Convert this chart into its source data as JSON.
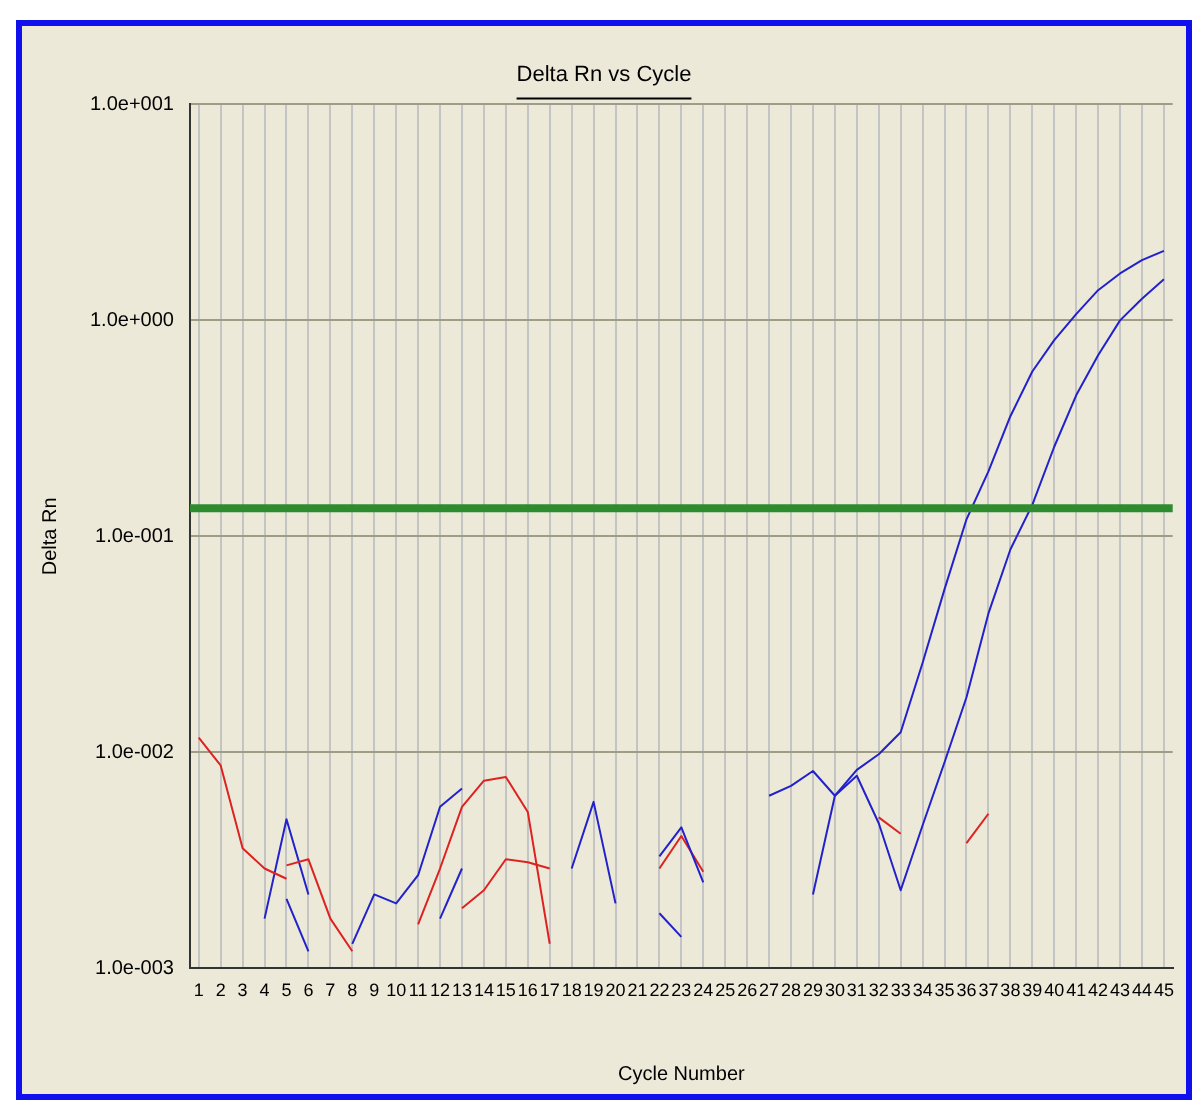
{
  "chart_data": {
    "type": "line",
    "title": "Delta Rn vs Cycle",
    "xlabel": "Cycle Number",
    "ylabel": "Delta Rn",
    "log": "y",
    "grid": true,
    "legend": false,
    "xlim": [
      0.6,
      45.4
    ],
    "xticks": [
      1,
      2,
      3,
      4,
      5,
      6,
      7,
      8,
      9,
      10,
      11,
      12,
      13,
      14,
      15,
      16,
      17,
      18,
      19,
      20,
      21,
      22,
      23,
      24,
      25,
      26,
      27,
      28,
      29,
      30,
      31,
      32,
      33,
      34,
      35,
      36,
      37,
      38,
      39,
      40,
      41,
      42,
      43,
      44,
      45
    ],
    "ylim": [
      0.001,
      10
    ],
    "yticks": [
      {
        "value": 0.001,
        "label": "1.0e-003"
      },
      {
        "value": 0.01,
        "label": "1.0e-002"
      },
      {
        "value": 0.1,
        "label": "1.0e-001"
      },
      {
        "value": 1,
        "label": "1.0e+000"
      },
      {
        "value": 10,
        "label": "1.0e+001"
      }
    ],
    "ref_lines": [
      {
        "axis": "y",
        "value": 0.135,
        "color": "#2e8b2e"
      }
    ],
    "series": [
      {
        "color": "#dd2222",
        "x": [
          1,
          2,
          3,
          4,
          5
        ],
        "values": [
          0.0117,
          0.0087,
          0.0036,
          0.0029,
          0.0026
        ]
      },
      {
        "color": "#dd2222",
        "x": [
          5,
          6,
          7,
          8
        ],
        "values": [
          0.003,
          0.0032,
          0.0017,
          0.0012
        ]
      },
      {
        "color": "#2222cc",
        "x": [
          4,
          5,
          6
        ],
        "values": [
          0.0017,
          0.0049,
          0.0022
        ]
      },
      {
        "color": "#2222cc",
        "x": [
          5,
          6
        ],
        "values": [
          0.0021,
          0.0012
        ]
      },
      {
        "color": "#2222cc",
        "x": [
          8,
          9,
          10,
          11,
          12,
          13
        ],
        "values": [
          0.0013,
          0.0022,
          0.002,
          0.0027,
          0.0056,
          0.0068
        ]
      },
      {
        "color": "#dd2222",
        "x": [
          11,
          12,
          13,
          14,
          15,
          16,
          17
        ],
        "values": [
          0.0016,
          0.0029,
          0.0056,
          0.0074,
          0.0077,
          0.0053,
          0.0013
        ]
      },
      {
        "color": "#2222cc",
        "x": [
          12,
          13
        ],
        "values": [
          0.0017,
          0.0029
        ]
      },
      {
        "color": "#dd2222",
        "x": [
          13,
          14,
          15,
          16,
          17
        ],
        "values": [
          0.0019,
          0.0023,
          0.0032,
          0.0031,
          0.0029
        ]
      },
      {
        "color": "#2222cc",
        "x": [
          18,
          19,
          20
        ],
        "values": [
          0.0029,
          0.0059,
          0.002
        ]
      },
      {
        "color": "#2222cc",
        "x": [
          22,
          23,
          24
        ],
        "values": [
          0.0033,
          0.0045,
          0.0025
        ]
      },
      {
        "color": "#dd2222",
        "x": [
          22,
          23,
          24
        ],
        "values": [
          0.0029,
          0.0041,
          0.0028
        ]
      },
      {
        "color": "#2222cc",
        "x": [
          22,
          23
        ],
        "values": [
          0.0018,
          0.0014
        ]
      },
      {
        "color": "#2222cc",
        "x": [
          27,
          28,
          29,
          30,
          31,
          32,
          33,
          34,
          35,
          36,
          37,
          38,
          39,
          40,
          41,
          42,
          43,
          44,
          45
        ],
        "values": [
          0.0063,
          0.007,
          0.0082,
          0.0063,
          0.0083,
          0.0098,
          0.0124,
          0.026,
          0.057,
          0.12,
          0.2,
          0.36,
          0.58,
          0.81,
          1.07,
          1.38,
          1.65,
          1.9,
          2.1
        ]
      },
      {
        "color": "#2222cc",
        "x": [
          29,
          30,
          31,
          32,
          33,
          34,
          35,
          36,
          37,
          38,
          39,
          40,
          41,
          42,
          43,
          44,
          45
        ],
        "values": [
          0.0022,
          0.0063,
          0.0078,
          0.0047,
          0.0023,
          0.0046,
          0.009,
          0.018,
          0.044,
          0.087,
          0.14,
          0.26,
          0.45,
          0.69,
          1.0,
          1.26,
          1.55
        ]
      },
      {
        "color": "#dd2222",
        "x": [
          32,
          33
        ],
        "values": [
          0.005,
          0.0042
        ]
      },
      {
        "color": "#dd2222",
        "x": [
          36,
          37
        ],
        "values": [
          0.0038,
          0.0052
        ]
      }
    ]
  }
}
